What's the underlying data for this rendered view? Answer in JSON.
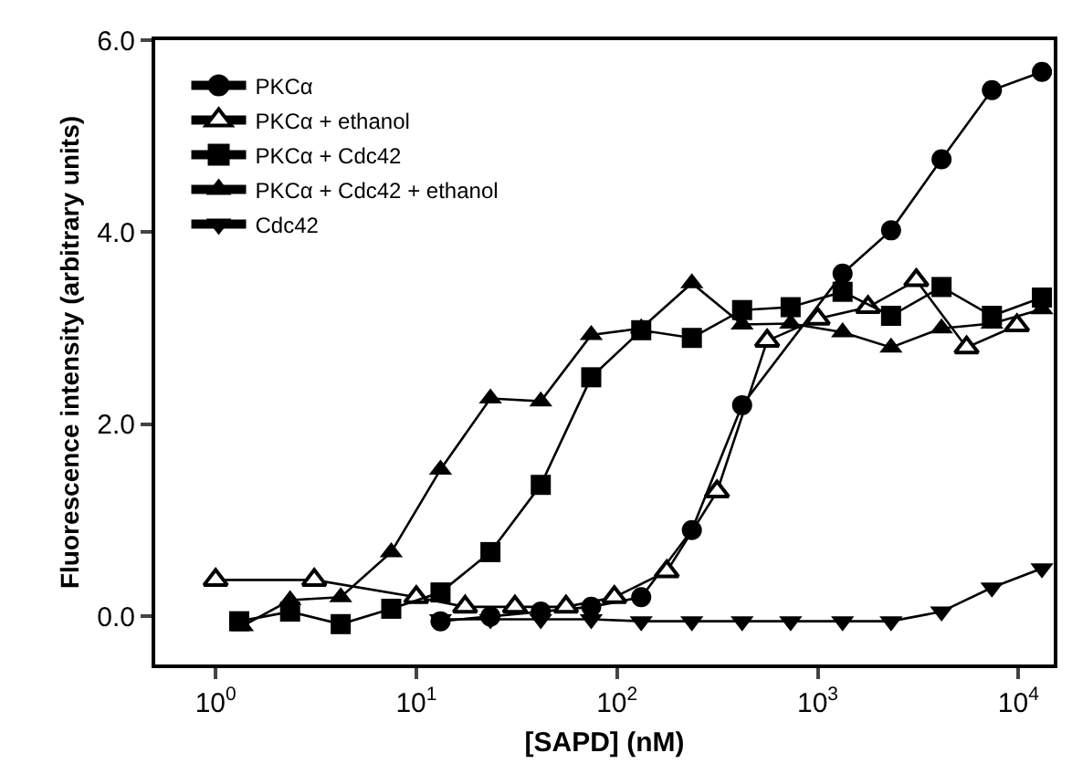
{
  "chart_data": {
    "type": "line",
    "xlabel": "[SAPD] (nM)",
    "ylabel": "Fluorescence intensity (arbitrary units)",
    "log": "x",
    "xlim": [
      0.5,
      15000
    ],
    "ylim": [
      -0.5,
      6.0
    ],
    "xticks": [
      {
        "value": 1,
        "label": "10$^{0}$"
      },
      {
        "value": 10,
        "label": "10$^{1}$"
      },
      {
        "value": 100,
        "label": "10$^{2}$"
      },
      {
        "value": 1000,
        "label": "10$^{3}$"
      },
      {
        "value": 10000,
        "label": "10$^{4}$"
      }
    ],
    "yticks": [
      {
        "value": 0,
        "label": "0.0"
      },
      {
        "value": 2,
        "label": "2.0"
      },
      {
        "value": 4,
        "label": "4.0"
      },
      {
        "value": 6,
        "label": "6.0"
      }
    ],
    "legend": "top left",
    "line_style": "solid",
    "series": [
      {
        "name": "PKCα",
        "color": "#000000",
        "marker": "circle",
        "x": [
          13.2,
          23.4,
          41.7,
          74.4,
          132,
          236,
          420,
          1330,
          2320,
          4140,
          7380,
          13100
        ],
        "values": [
          -0.05,
          0.0,
          0.05,
          0.1,
          0.2,
          0.9,
          2.2,
          3.57,
          4.02,
          4.76,
          5.48,
          5.67
        ]
      },
      {
        "name": "PKCα + ethanol",
        "color": "#000000",
        "marker": "triangle-open",
        "x": [
          1.0,
          3.1,
          10,
          17.5,
          31,
          55.7,
          97,
          177,
          315,
          560,
          1000,
          1780,
          3100,
          5520,
          9840
        ],
        "values": [
          0.38,
          0.38,
          0.2,
          0.1,
          0.1,
          0.1,
          0.2,
          0.47,
          1.3,
          2.87,
          3.1,
          3.22,
          3.5,
          2.8,
          3.03
        ]
      },
      {
        "name": "PKCα + Cdc42",
        "color": "#000000",
        "marker": "square",
        "x": [
          1.31,
          2.35,
          4.2,
          7.5,
          13.2,
          23.4,
          41.7,
          74.4,
          132,
          236,
          420,
          733,
          1330,
          2320,
          4140,
          7380,
          13100
        ],
        "values": [
          -0.05,
          0.05,
          -0.08,
          0.08,
          0.25,
          0.67,
          1.37,
          2.49,
          2.98,
          2.9,
          3.19,
          3.22,
          3.38,
          3.13,
          3.43,
          3.13,
          3.32
        ]
      },
      {
        "name": "PKCα + Cdc42 + ethanol",
        "color": "#000000",
        "marker": "triangle",
        "x": [
          1.36,
          2.35,
          4.2,
          7.5,
          13.2,
          23.4,
          41.7,
          74.4,
          132,
          236,
          420,
          733,
          1330,
          2320,
          4140,
          7380,
          13100
        ],
        "values": [
          -0.1,
          0.17,
          0.2,
          0.67,
          1.53,
          2.27,
          2.24,
          2.93,
          3.0,
          3.47,
          3.04,
          3.05,
          2.96,
          2.8,
          3.0,
          3.05,
          3.2
        ]
      },
      {
        "name": "Cdc42",
        "color": "#000000",
        "marker": "triangle-down",
        "x": [
          13.2,
          23.4,
          41.7,
          74.4,
          132,
          236,
          420,
          733,
          1330,
          2320,
          4140,
          7380,
          13100
        ],
        "values": [
          -0.03,
          -0.03,
          -0.03,
          -0.03,
          -0.05,
          -0.05,
          -0.05,
          -0.05,
          -0.05,
          -0.05,
          0.05,
          0.3,
          0.5
        ]
      }
    ]
  }
}
